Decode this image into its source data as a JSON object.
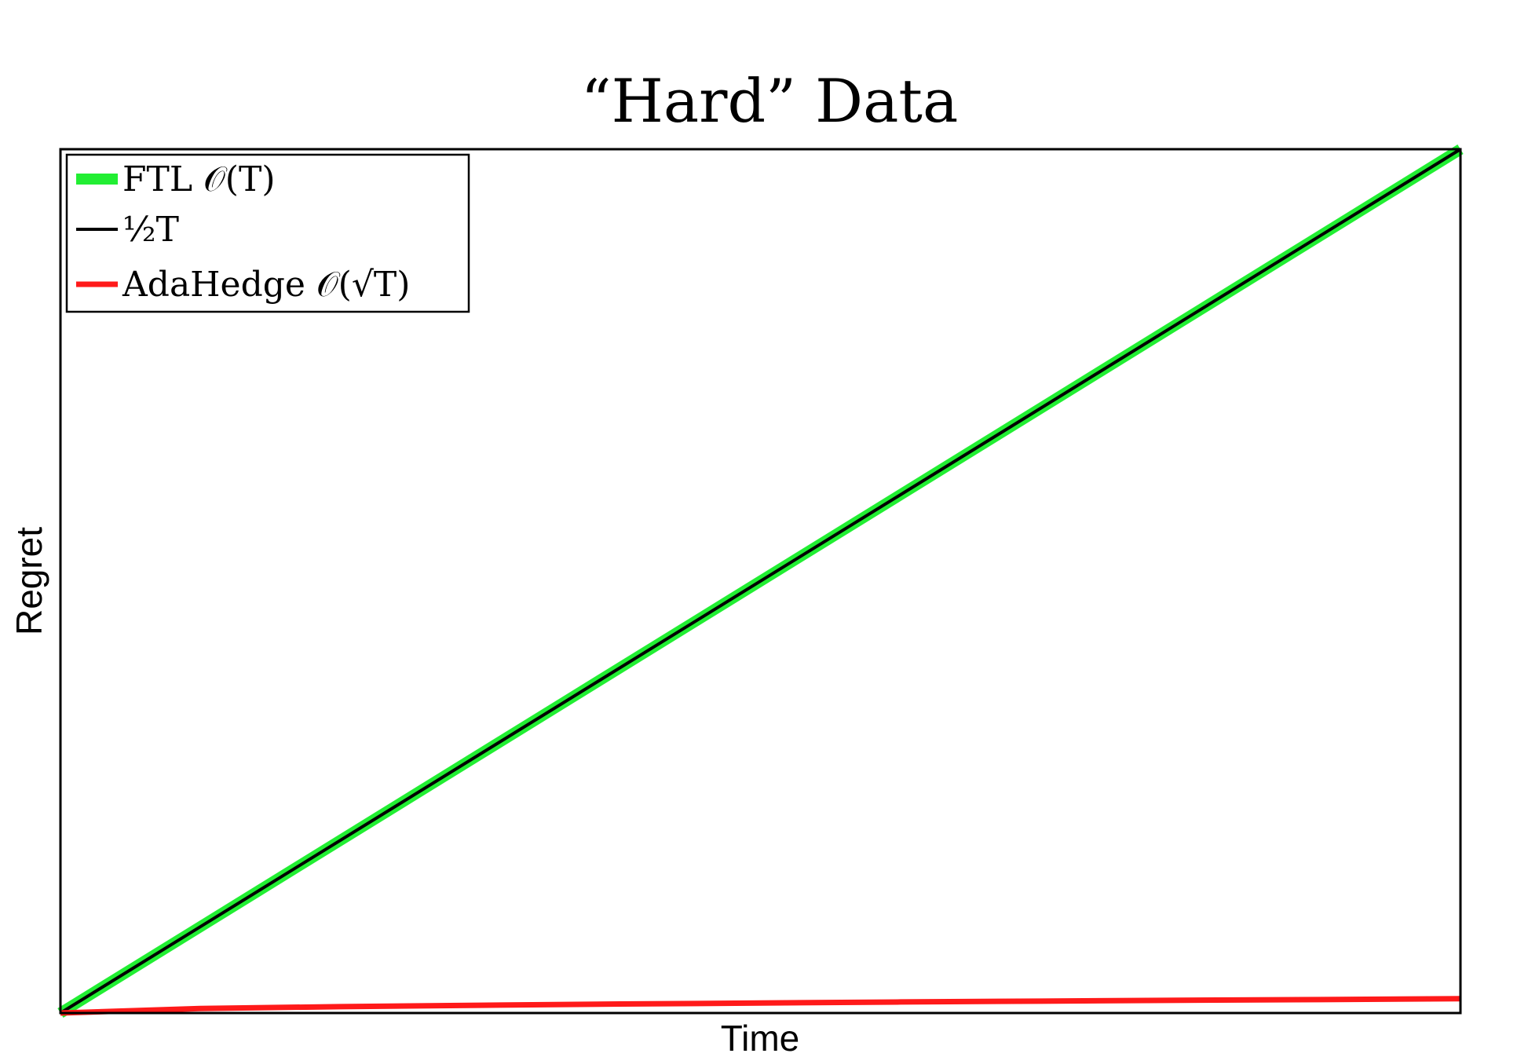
{
  "chart_data": {
    "type": "line",
    "title": "“Hard” Data",
    "xlabel": "Time",
    "ylabel": "Regret",
    "xlim": [
      0,
      1
    ],
    "ylim": [
      0,
      0.5
    ],
    "grid": false,
    "legend_position": "top-left",
    "series": [
      {
        "name": "FTL 𝒪(T)",
        "color": "#22ee33",
        "x": [
          0,
          1
        ],
        "y": [
          0,
          0.5
        ]
      },
      {
        "name": "½T",
        "color": "#000000",
        "x": [
          0,
          1
        ],
        "y": [
          0,
          0.5
        ]
      },
      {
        "name": "AdaHedge 𝒪(√T)",
        "color": "#ff1a1a",
        "x": [
          0,
          0.1,
          0.2,
          0.3,
          0.4,
          0.5,
          0.6,
          0.7,
          0.8,
          0.9,
          1.0
        ],
        "y": [
          0,
          0.0026,
          0.0037,
          0.0045,
          0.0052,
          0.0058,
          0.0064,
          0.0069,
          0.0074,
          0.0078,
          0.0083
        ]
      }
    ]
  }
}
